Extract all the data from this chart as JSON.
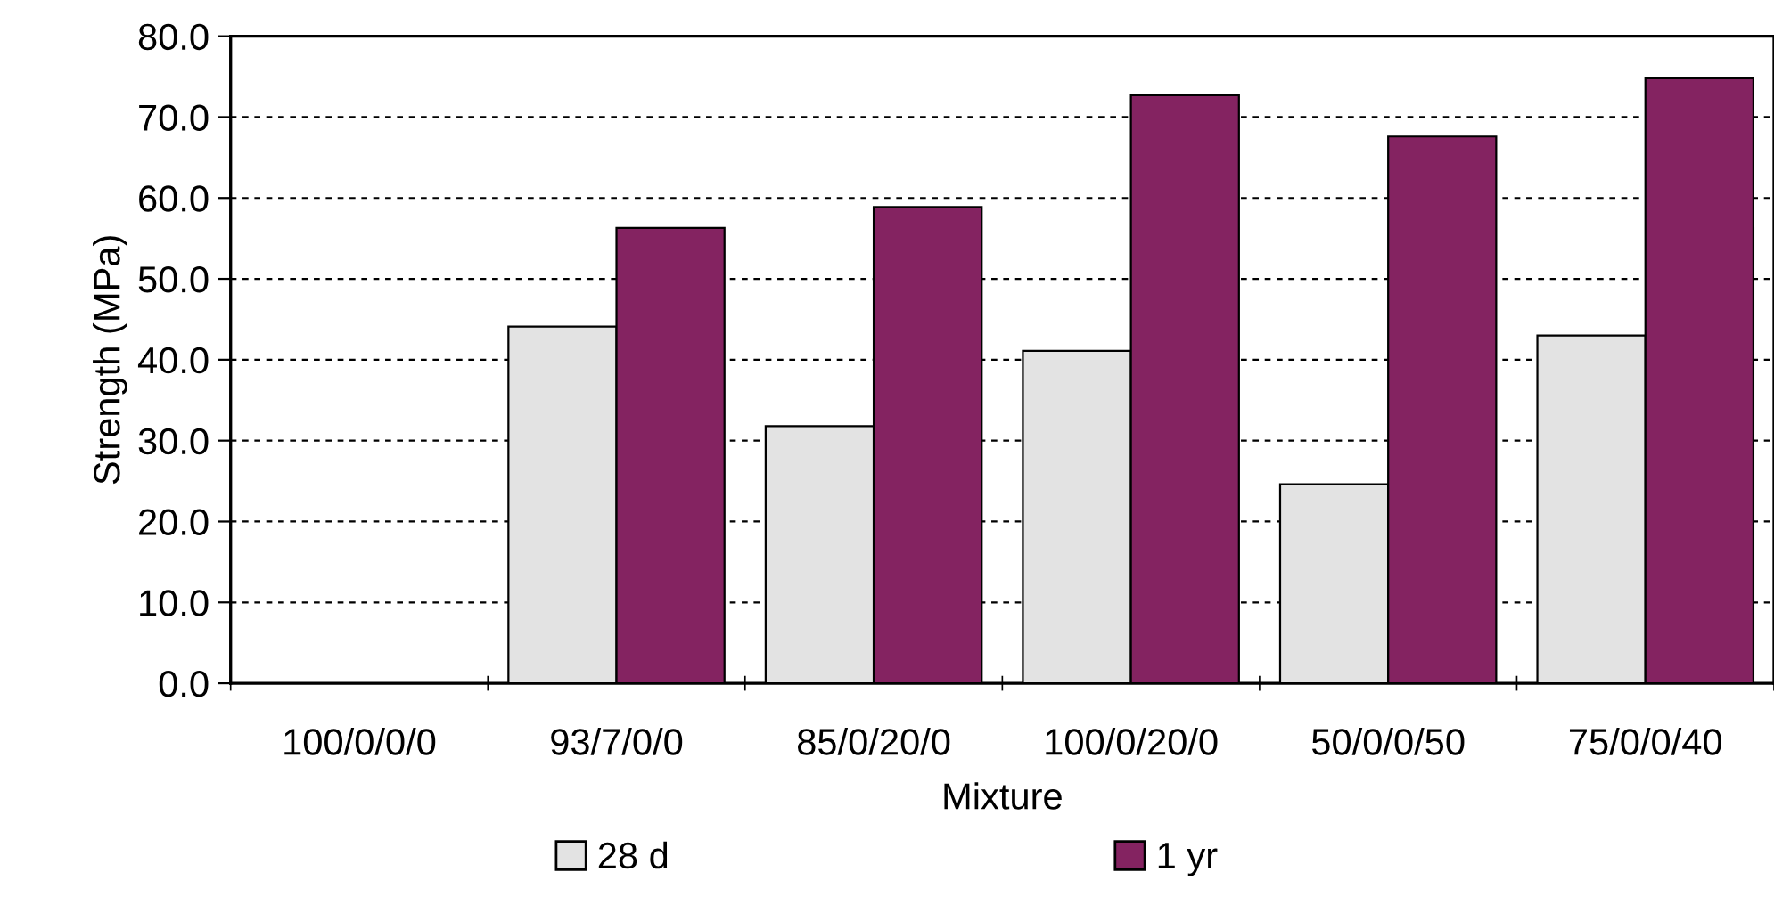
{
  "chart_data": {
    "type": "bar",
    "xlabel": "Mixture",
    "ylabel": "Strength (MPa)",
    "categories": [
      "100/0/0/0",
      "93/7/0/0",
      "85/0/20/0",
      "100/0/20/0",
      "50/0/0/50",
      "75/0/0/40"
    ],
    "series": [
      {
        "name": "28 d",
        "color": "#e3e3e3",
        "values": [
          null,
          44.1,
          31.8,
          41.1,
          24.6,
          43.0
        ]
      },
      {
        "name": "1 yr",
        "color": "#842361",
        "values": [
          null,
          56.3,
          58.9,
          72.7,
          67.6,
          74.8
        ]
      }
    ],
    "ylim": [
      0,
      80
    ],
    "yticks": [
      {
        "value": 0,
        "label": "0.0"
      },
      {
        "value": 10,
        "label": "10.0"
      },
      {
        "value": 20,
        "label": "20.0"
      },
      {
        "value": 30,
        "label": "30.0"
      },
      {
        "value": 40,
        "label": "40.0"
      },
      {
        "value": 50,
        "label": "50.0"
      },
      {
        "value": 60,
        "label": "60.0"
      },
      {
        "value": 70,
        "label": "70.0"
      },
      {
        "value": 80,
        "label": "80.0"
      }
    ],
    "grid": "y",
    "legend": "bottom"
  }
}
